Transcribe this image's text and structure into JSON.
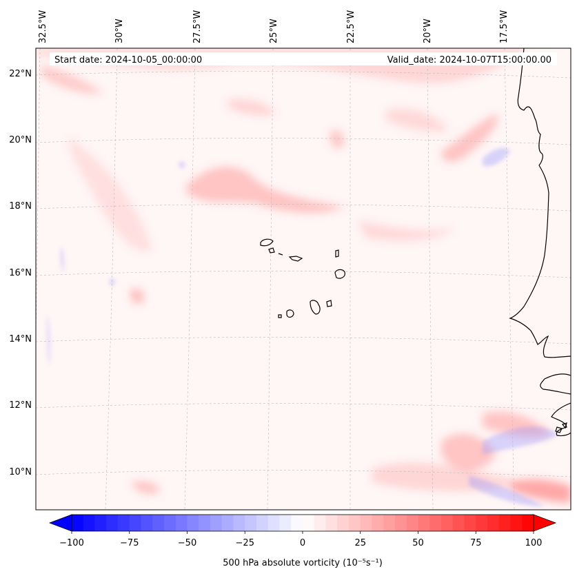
{
  "header": {
    "start_label": "Start date: 2024-10-05_00:00:00",
    "valid_label": "Valid_date: 2024-10-07T15:00:00.00"
  },
  "lon_labels": [
    "32.5°W",
    "30°W",
    "27.5°W",
    "25°W",
    "22.5°W",
    "20°W",
    "17.5°W"
  ],
  "lat_labels": [
    "22°N",
    "20°N",
    "18°N",
    "16°N",
    "14°N",
    "12°N",
    "10°N"
  ],
  "colorbar": {
    "label": "500 hPa absolute vorticity (10⁻⁵s⁻¹)",
    "ticks": [
      "−100",
      "−75",
      "−50",
      "−25",
      "0",
      "25",
      "50",
      "75",
      "100"
    ],
    "vmin": -100,
    "vmax": 100,
    "levels": 40,
    "low_color": "#0000ff",
    "mid_color": "#ffffff",
    "high_color": "#ff0000"
  },
  "map": {
    "ocean_color": "#fff6f6",
    "coast_color": "#000000",
    "grid_color": "#bbbbbb"
  }
}
